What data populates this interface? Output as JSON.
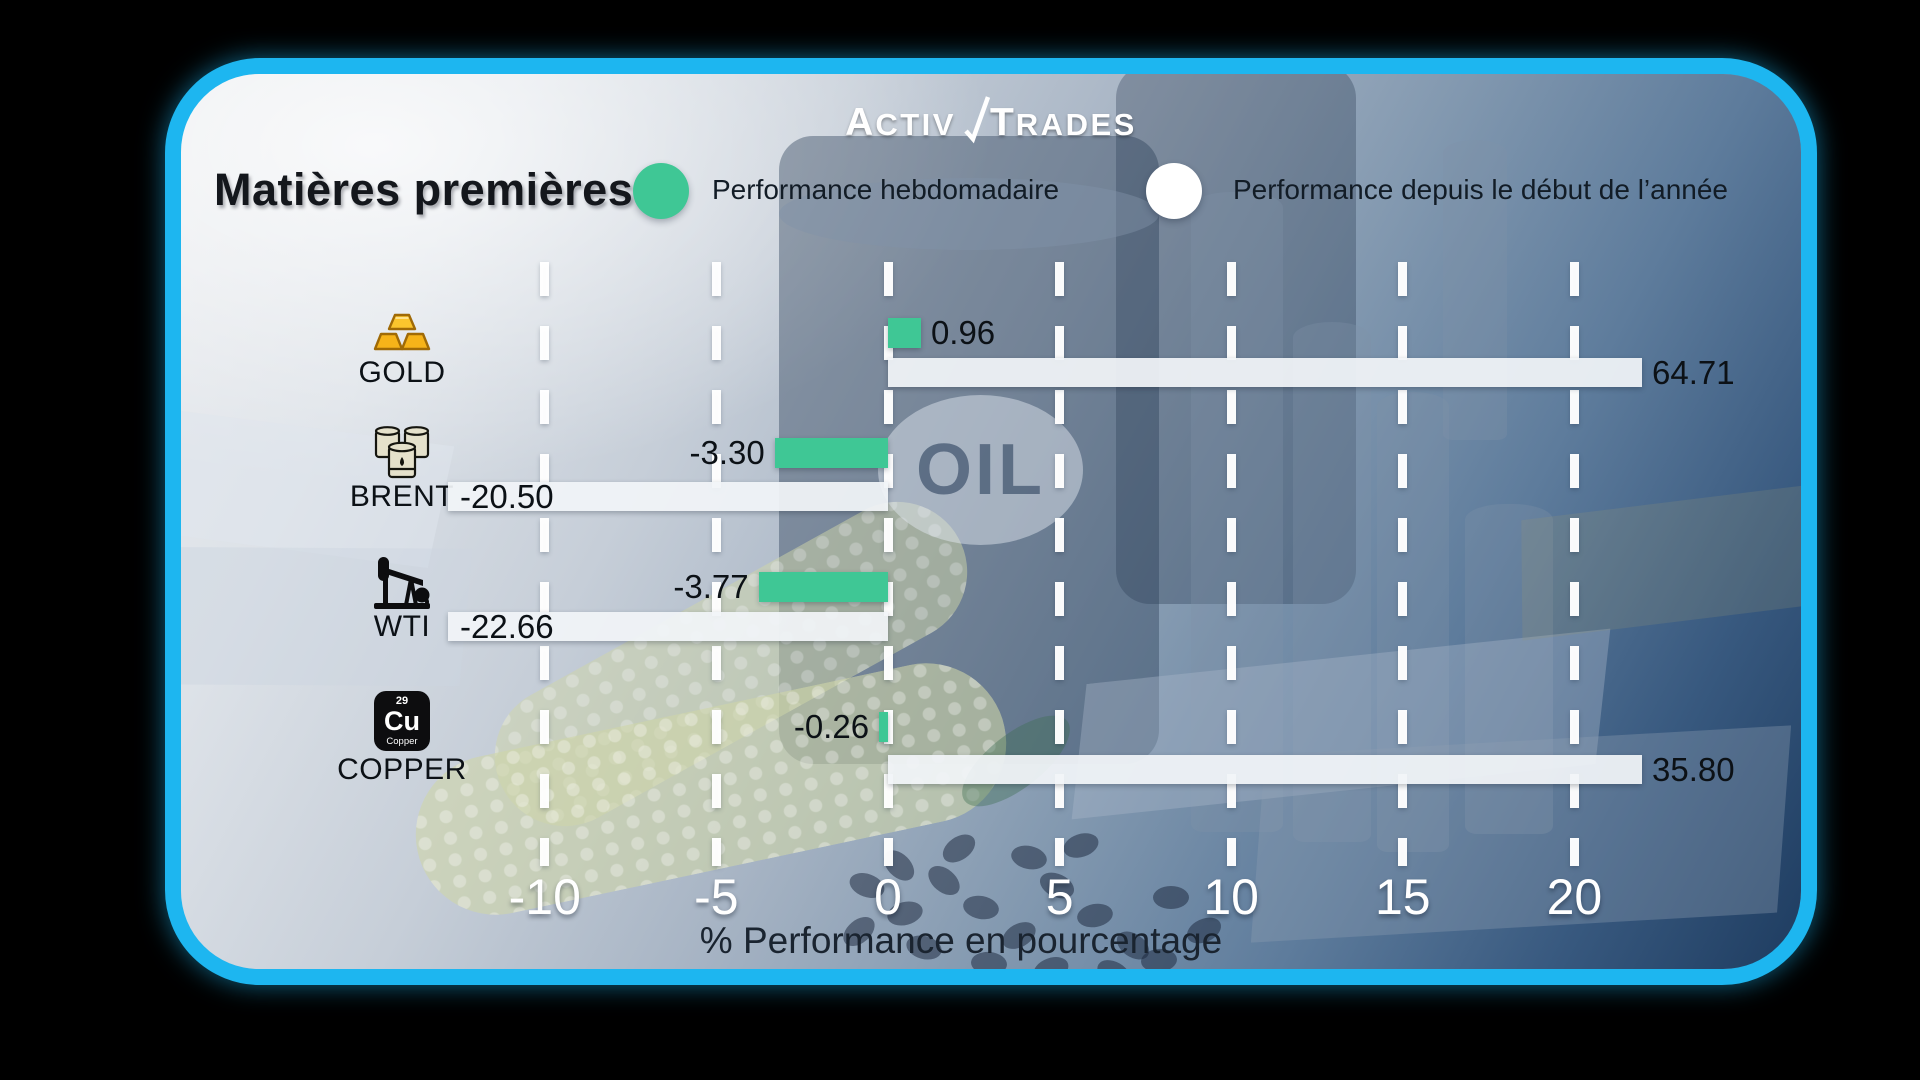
{
  "brand": {
    "name": "ActivTrades",
    "logo_part1": "Activ",
    "logo_part2": "Trades"
  },
  "title": "Matières premières",
  "legend": {
    "weekly": {
      "label": "Performance hebdomadaire",
      "color": "#3fc795"
    },
    "ytd": {
      "label": "Performance depuis le début de l’année",
      "color": "#ffffff"
    }
  },
  "watermark_oil": "OIL",
  "copper_tile": {
    "number": "29",
    "symbol": "Cu",
    "name": "Copper"
  },
  "chart_data": {
    "type": "bar",
    "orientation": "horizontal",
    "title": "Matières premières",
    "categories": [
      "GOLD",
      "BRENT",
      "WTI",
      "COPPER"
    ],
    "series": [
      {
        "name": "Performance hebdomadaire",
        "color": "#3fc795",
        "values": [
          0.96,
          -3.3,
          -3.77,
          -0.26
        ],
        "labels": [
          "0.96",
          "-3.30",
          "-3.77",
          "-0.26"
        ]
      },
      {
        "name": "Performance depuis le début de l’année",
        "color": "#f1f4f8",
        "values": [
          64.71,
          -20.5,
          -22.66,
          35.8
        ],
        "labels": [
          "64.71",
          "-20.50",
          "-22.66",
          "35.80"
        ]
      }
    ],
    "xlabel": "% Performance en pourcentage",
    "ticks": {
      "values": [
        -10,
        -5,
        0,
        5,
        10,
        15,
        20
      ],
      "labels": [
        "-10",
        "-5",
        "0",
        "5",
        "10",
        "15",
        "20"
      ]
    },
    "xlim": [
      -12.8,
      22.0
    ],
    "grid": "vertical-dashed-white",
    "legend_position": "top",
    "bars_clipped_at_plot_edges": true,
    "icons": [
      "gold-ingots",
      "oil-barrels",
      "oil-pumpjack",
      "copper-element"
    ]
  }
}
